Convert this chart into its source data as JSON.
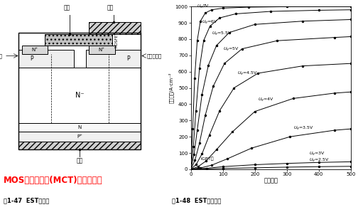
{
  "title": "MOS控制晶闸管(MCT)等相关介绍",
  "title_color": "#FF0000",
  "fig_caption_left": "图1-47  EST断面图",
  "fig_caption_right": "图1-48  EST输出特性",
  "graph": {
    "xlabel": "正向压降",
    "ylabel": "阻密电流/A·cm⁻²",
    "xlim": [
      0,
      500
    ],
    "ylim": [
      0,
      1000
    ],
    "xticks": [
      0,
      100,
      200,
      300,
      400,
      500
    ],
    "yticks": [
      0,
      100,
      200,
      300,
      400,
      500,
      600,
      700,
      800,
      900,
      1000
    ]
  }
}
